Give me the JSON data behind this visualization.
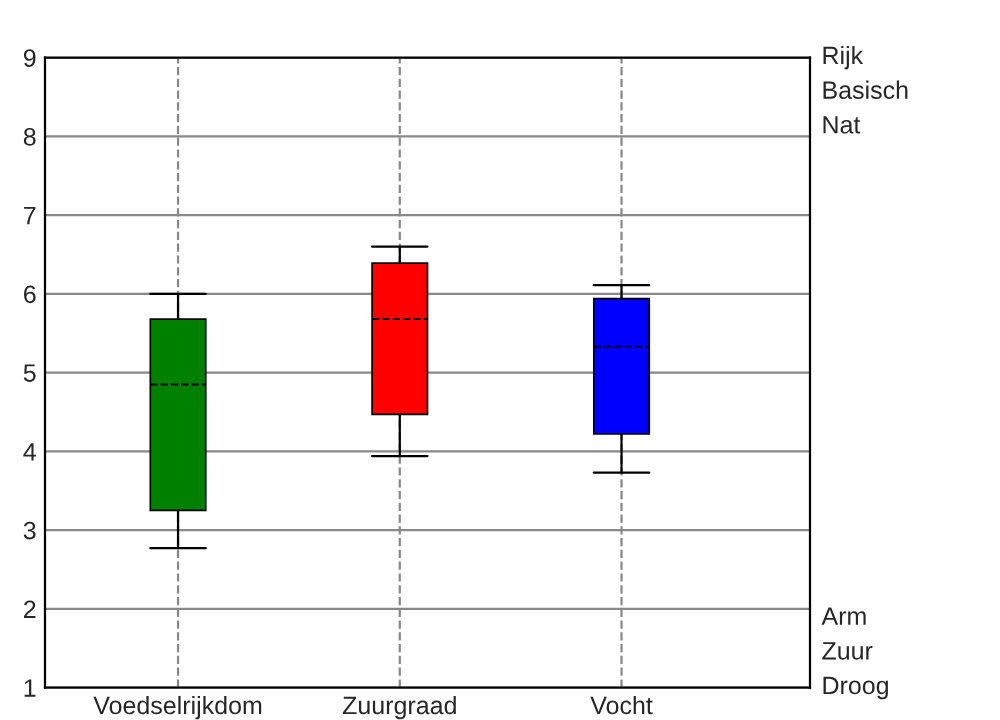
{
  "chart_data": {
    "type": "box",
    "categories": [
      "Voedselrijkdom",
      "Zuurgraad",
      "Vocht"
    ],
    "colors": [
      "#008000",
      "#ff0000",
      "#0000ff"
    ],
    "boxes": [
      {
        "low": 2.77,
        "q1": 3.25,
        "median": 4.85,
        "q3": 5.68,
        "high": 6.0
      },
      {
        "low": 3.94,
        "q1": 4.47,
        "median": 5.68,
        "q3": 6.39,
        "high": 6.6
      },
      {
        "low": 3.73,
        "q1": 4.22,
        "median": 5.33,
        "q3": 5.94,
        "high": 6.11
      }
    ],
    "ylim": [
      1,
      9
    ],
    "yticks": [
      1,
      2,
      3,
      4,
      5,
      6,
      7,
      8,
      9
    ],
    "grid": true,
    "annotations": [
      "Rijk",
      "Basisch",
      "Nat",
      "Arm",
      "Zuur",
      "Droog"
    ]
  }
}
